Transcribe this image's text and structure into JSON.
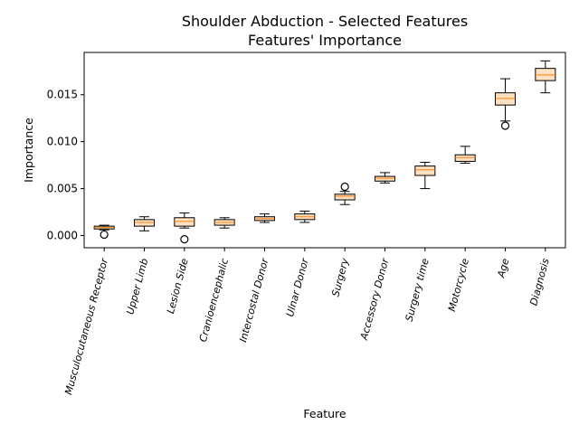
{
  "chart_data": {
    "type": "box",
    "title": "Shoulder Abduction - Selected Features",
    "subtitle": "Features' Importance",
    "xlabel": "Feature",
    "ylabel": "Importance",
    "ylim": [
      -0.0013,
      0.0195
    ],
    "yticks": [
      0.0,
      0.005,
      0.01,
      0.015
    ],
    "ytick_labels": [
      "0.000",
      "0.005",
      "0.010",
      "0.015"
    ],
    "grid": false,
    "colors": {
      "box": "#000000",
      "median": "#ff7f0e",
      "fill": "#ffe0c0"
    },
    "categories": [
      "Musculocutaneous Receptor",
      "Upper Limb",
      "Lesion Side",
      "Cranioencephalic",
      "Intercostal Donor",
      "Ulnar Donor",
      "Surgery",
      "Accessory Donor",
      "Surgery time",
      "Motorcycle",
      "Age",
      "Diagnosis"
    ],
    "boxes": [
      {
        "whislo": 0.0006,
        "q1": 0.0007,
        "med": 0.00085,
        "q3": 0.001,
        "whishi": 0.0011,
        "fliers": [
          0.0001
        ]
      },
      {
        "whislo": 0.0005,
        "q1": 0.001,
        "med": 0.0014,
        "q3": 0.0017,
        "whishi": 0.002,
        "fliers": []
      },
      {
        "whislo": 0.0008,
        "q1": 0.001,
        "med": 0.0015,
        "q3": 0.0019,
        "whishi": 0.0024,
        "fliers": [
          -0.0004
        ]
      },
      {
        "whislo": 0.0008,
        "q1": 0.0011,
        "med": 0.0014,
        "q3": 0.0017,
        "whishi": 0.0019,
        "fliers": []
      },
      {
        "whislo": 0.0014,
        "q1": 0.0016,
        "med": 0.0018,
        "q3": 0.002,
        "whishi": 0.0023,
        "fliers": []
      },
      {
        "whislo": 0.0014,
        "q1": 0.0017,
        "med": 0.002,
        "q3": 0.0023,
        "whishi": 0.0026,
        "fliers": []
      },
      {
        "whislo": 0.0033,
        "q1": 0.0038,
        "med": 0.0042,
        "q3": 0.0044,
        "whishi": 0.0047,
        "fliers": [
          0.0052
        ]
      },
      {
        "whislo": 0.0056,
        "q1": 0.0058,
        "med": 0.0061,
        "q3": 0.0063,
        "whishi": 0.0067,
        "fliers": []
      },
      {
        "whislo": 0.005,
        "q1": 0.0064,
        "med": 0.007,
        "q3": 0.0074,
        "whishi": 0.0078,
        "fliers": []
      },
      {
        "whislo": 0.0077,
        "q1": 0.0079,
        "med": 0.0083,
        "q3": 0.0086,
        "whishi": 0.0095,
        "fliers": []
      },
      {
        "whislo": 0.0122,
        "q1": 0.0139,
        "med": 0.0146,
        "q3": 0.0152,
        "whishi": 0.0167,
        "fliers": [
          0.0117
        ]
      },
      {
        "whislo": 0.0152,
        "q1": 0.0165,
        "med": 0.0171,
        "q3": 0.0178,
        "whishi": 0.0186,
        "fliers": []
      }
    ]
  }
}
